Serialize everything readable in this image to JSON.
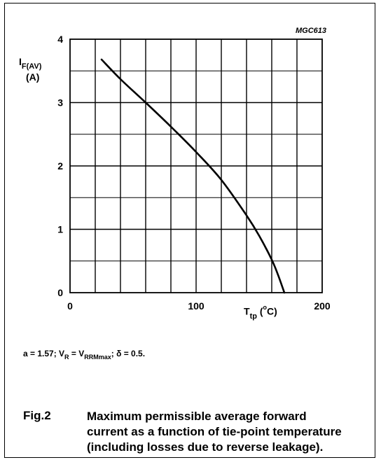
{
  "figure_code": "MGC613",
  "ylabel": {
    "main": "I",
    "sub": "F(AV)",
    "unit": "(A)"
  },
  "xlabel": {
    "main": "T",
    "sub": "tp",
    "unit_open": " (",
    "unit_deg": "o",
    "unit_c": "C)"
  },
  "conditions": {
    "a": "a = 1.57; V",
    "vr_sub": "R",
    "eq": " = V",
    "vrrm_sub": "RRMmax",
    "delta": "; δ = 0.5."
  },
  "caption": {
    "number": "Fig.2",
    "lines": [
      "Maximum permissible average forward",
      "current as a function of tie-point temperature",
      "(including losses due to reverse leakage)."
    ]
  },
  "chart_data": {
    "type": "line",
    "xlim": [
      0,
      200
    ],
    "ylim": [
      0,
      4
    ],
    "x_ticks": [
      0,
      100,
      200
    ],
    "x_tick_labels": [
      "0",
      "100",
      "200"
    ],
    "y_ticks": [
      0,
      1,
      2,
      3,
      4
    ],
    "y_tick_labels": [
      "0",
      "1",
      "2",
      "3",
      "4"
    ],
    "grid": true,
    "x_grid_step": 20,
    "y_grid_step": 0.5,
    "series": [
      {
        "x": [
          25,
          40,
          60,
          80,
          100,
          120,
          140,
          150,
          160,
          165,
          170
        ],
        "y": [
          3.68,
          3.37,
          3.0,
          2.62,
          2.22,
          1.78,
          1.22,
          0.9,
          0.52,
          0.28,
          0.0
        ]
      }
    ]
  },
  "colors": {
    "ink": "#000000",
    "grid_minor": "#9a9a9a",
    "background": "#ffffff"
  }
}
